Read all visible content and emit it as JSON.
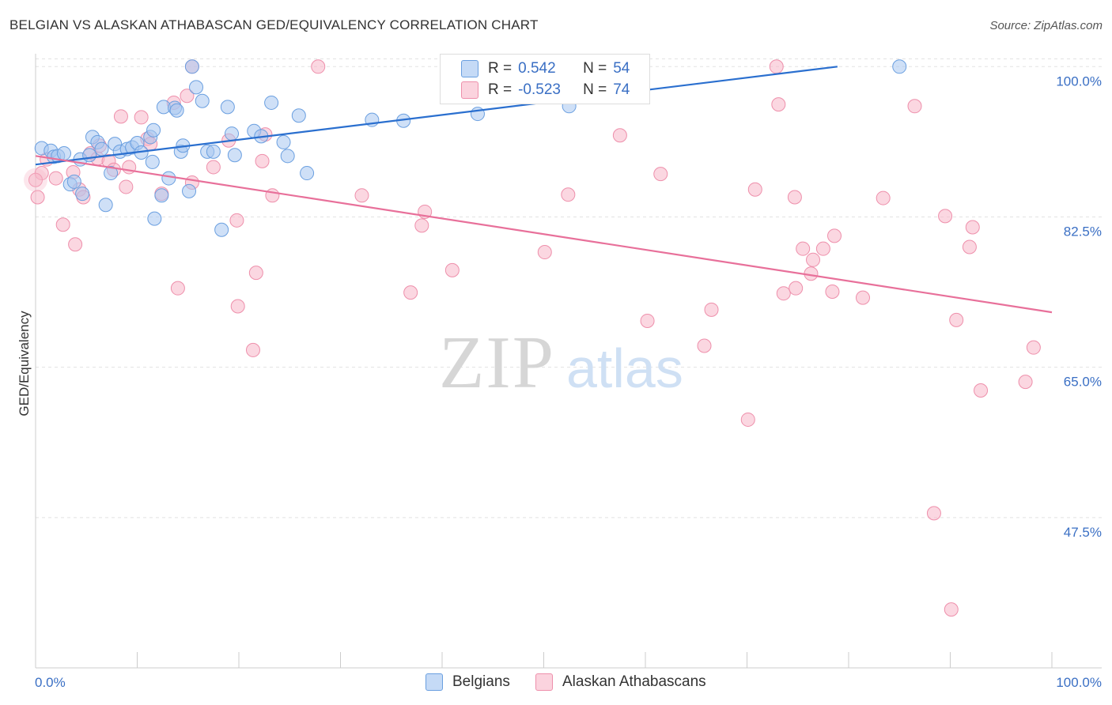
{
  "header": {
    "title": "BELGIAN VS ALASKAN ATHABASCAN GED/EQUIVALENCY CORRELATION CHART",
    "source": "Source: ZipAtlas.com"
  },
  "watermark": {
    "zip": "ZIP",
    "atlas": "atlas"
  },
  "legend": {
    "r_label": "R =",
    "n_label": "N =",
    "rows": [
      {
        "r": "0.542",
        "n": "54",
        "color": "#a7c7f0"
      },
      {
        "r": "-0.523",
        "n": "74",
        "color": "#f7b6c8"
      }
    ]
  },
  "bottom_legend": [
    "Belgians",
    "Alaskan Athabascans"
  ],
  "colors": {
    "blue_fill": "#a7c7f0",
    "blue_stroke": "#6a9fe0",
    "blue_line": "#2a6fcf",
    "pink_fill": "#f7b6c8",
    "pink_stroke": "#ee8fab",
    "pink_line": "#e8709a",
    "tick_label": "#3a6fc4",
    "grid": "#e2e2e2"
  },
  "chart_data": {
    "type": "scatter",
    "title": "BELGIAN VS ALASKAN ATHABASCAN GED/EQUIVALENCY CORRELATION CHART",
    "xlabel": "",
    "ylabel": "GED/Equivalency",
    "xlim": [
      0,
      100
    ],
    "ylim": [
      30,
      101.5
    ],
    "x_tick_labels": [
      "0.0%",
      "100.0%"
    ],
    "y_ticks": [
      47.5,
      65.0,
      82.5,
      100.0
    ],
    "y_tick_labels": [
      "47.5%",
      "65.0%",
      "82.5%",
      "100.0%"
    ],
    "grid": true,
    "legend_placement": "top-center",
    "series": [
      {
        "name": "Belgians",
        "r": 0.542,
        "n": 54,
        "trend": [
          [
            0,
            88.6
          ],
          [
            78.9,
            100.0
          ]
        ],
        "points": [
          [
            0.6,
            90.5
          ],
          [
            1.5,
            90.2
          ],
          [
            1.8,
            89.5
          ],
          [
            2.2,
            89.6
          ],
          [
            2.8,
            89.9
          ],
          [
            3.4,
            86.3
          ],
          [
            3.8,
            86.6
          ],
          [
            4.4,
            89.2
          ],
          [
            4.6,
            85.2
          ],
          [
            5.3,
            89.7
          ],
          [
            5.6,
            91.8
          ],
          [
            6.1,
            91.2
          ],
          [
            6.5,
            90.4
          ],
          [
            6.9,
            83.9
          ],
          [
            7.4,
            87.6
          ],
          [
            7.8,
            91.0
          ],
          [
            8.3,
            90.1
          ],
          [
            9.0,
            90.4
          ],
          [
            9.5,
            90.6
          ],
          [
            10.0,
            91.1
          ],
          [
            10.4,
            90.0
          ],
          [
            11.3,
            91.8
          ],
          [
            11.5,
            88.9
          ],
          [
            11.6,
            92.6
          ],
          [
            11.7,
            82.3
          ],
          [
            12.4,
            85.0
          ],
          [
            12.6,
            95.3
          ],
          [
            13.1,
            87.0
          ],
          [
            13.7,
            95.2
          ],
          [
            13.9,
            94.9
          ],
          [
            14.3,
            90.1
          ],
          [
            14.5,
            90.8
          ],
          [
            15.1,
            85.5
          ],
          [
            15.4,
            100.0
          ],
          [
            15.8,
            97.6
          ],
          [
            16.4,
            96.0
          ],
          [
            16.9,
            90.1
          ],
          [
            17.5,
            90.1
          ],
          [
            18.3,
            81.0
          ],
          [
            18.9,
            95.3
          ],
          [
            19.3,
            92.2
          ],
          [
            19.6,
            89.7
          ],
          [
            21.5,
            92.5
          ],
          [
            22.2,
            91.9
          ],
          [
            23.2,
            95.8
          ],
          [
            24.4,
            91.2
          ],
          [
            24.8,
            89.6
          ],
          [
            25.9,
            94.3
          ],
          [
            26.7,
            87.6
          ],
          [
            33.1,
            93.8
          ],
          [
            36.2,
            93.7
          ],
          [
            43.5,
            94.5
          ],
          [
            52.5,
            95.4
          ],
          [
            85.0,
            100.0
          ]
        ]
      },
      {
        "name": "Alaskan Athabascans",
        "r": -0.523,
        "n": 74,
        "trend": [
          [
            0,
            89.6
          ],
          [
            100,
            71.4
          ]
        ],
        "points": [
          [
            0.2,
            84.8
          ],
          [
            0.6,
            87.6
          ],
          [
            1.1,
            89.2
          ],
          [
            2.0,
            87.0
          ],
          [
            2.7,
            81.6
          ],
          [
            3.7,
            87.7
          ],
          [
            3.9,
            79.3
          ],
          [
            4.3,
            85.7
          ],
          [
            4.7,
            84.8
          ],
          [
            5.4,
            89.9
          ],
          [
            6.1,
            89.3
          ],
          [
            6.3,
            90.8
          ],
          [
            7.2,
            89.0
          ],
          [
            7.7,
            88.0
          ],
          [
            8.4,
            94.2
          ],
          [
            8.9,
            86.0
          ],
          [
            9.2,
            88.3
          ],
          [
            10.4,
            94.1
          ],
          [
            11.0,
            91.6
          ],
          [
            11.3,
            91.0
          ],
          [
            12.4,
            85.2
          ],
          [
            13.6,
            95.8
          ],
          [
            14.0,
            74.2
          ],
          [
            14.9,
            96.6
          ],
          [
            15.4,
            86.5
          ],
          [
            15.4,
            100.0
          ],
          [
            17.5,
            88.3
          ],
          [
            19.0,
            91.4
          ],
          [
            19.8,
            82.1
          ],
          [
            19.9,
            72.1
          ],
          [
            21.4,
            67.0
          ],
          [
            21.7,
            76.0
          ],
          [
            22.3,
            89.0
          ],
          [
            22.6,
            92.1
          ],
          [
            23.3,
            85.0
          ],
          [
            27.8,
            100.0
          ],
          [
            32.1,
            85.0
          ],
          [
            36.9,
            73.7
          ],
          [
            38.0,
            81.5
          ],
          [
            38.3,
            83.1
          ],
          [
            41.0,
            76.3
          ],
          [
            50.1,
            78.4
          ],
          [
            52.4,
            85.1
          ],
          [
            57.5,
            92.0
          ],
          [
            60.2,
            70.4
          ],
          [
            61.5,
            87.5
          ],
          [
            65.8,
            67.5
          ],
          [
            66.5,
            71.7
          ],
          [
            70.1,
            58.9
          ],
          [
            70.8,
            85.7
          ],
          [
            72.9,
            100.0
          ],
          [
            73.1,
            95.6
          ],
          [
            73.6,
            73.6
          ],
          [
            74.7,
            84.8
          ],
          [
            74.8,
            74.2
          ],
          [
            75.5,
            78.8
          ],
          [
            76.3,
            75.9
          ],
          [
            76.5,
            77.5
          ],
          [
            77.5,
            78.8
          ],
          [
            78.4,
            73.8
          ],
          [
            78.6,
            80.3
          ],
          [
            81.4,
            73.1
          ],
          [
            83.4,
            84.7
          ],
          [
            86.5,
            95.4
          ],
          [
            88.4,
            48.0
          ],
          [
            89.5,
            82.6
          ],
          [
            90.1,
            36.8
          ],
          [
            90.6,
            70.5
          ],
          [
            91.9,
            79.0
          ],
          [
            92.2,
            81.3
          ],
          [
            93.0,
            62.3
          ],
          [
            97.4,
            63.3
          ],
          [
            98.2,
            67.3
          ],
          [
            0.0,
            86.8
          ]
        ]
      }
    ]
  }
}
